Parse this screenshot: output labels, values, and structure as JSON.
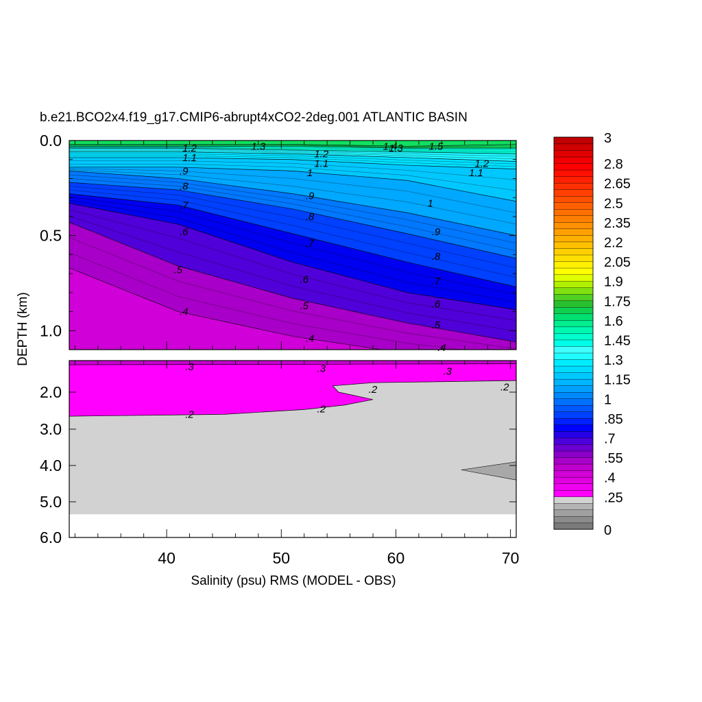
{
  "chart_data": {
    "type": "contour",
    "title": "b.e21.BCO2x4.f19_g17.CMIP6-abrupt4xCO2-2deg.001 ATLANTIC BASIN",
    "xlabel": "Salinity (psu) RMS (MODEL - OBS)",
    "ylabel": "DEPTH (km)",
    "xlim": [
      31.5,
      70.5
    ],
    "upper_panel": {
      "ylim": [
        0.0,
        1.1
      ],
      "yticks": [
        "0.0",
        "0.5",
        "1.0"
      ]
    },
    "lower_panel": {
      "ylim": [
        1.4,
        6.0
      ],
      "yticks": [
        "2.0",
        "3.0",
        "4.0",
        "5.0",
        "6.0"
      ]
    },
    "xticks": [
      "40",
      "50",
      "60",
      "70"
    ],
    "contour_lines": [
      {
        "level": 1.5,
        "label": "1.5",
        "depth": [
          0.02,
          0.02,
          0.02,
          0.03,
          0.02
        ]
      },
      {
        "level": 1.4,
        "label": "1.4",
        "depth": [
          0.03,
          0.03,
          0.03,
          0.04,
          0.04
        ]
      },
      {
        "level": 1.3,
        "label": "1.3",
        "depth": [
          0.04,
          0.04,
          0.05,
          0.06,
          0.07
        ]
      },
      {
        "level": 1.2,
        "label": "1.2",
        "depth": [
          0.06,
          0.06,
          0.07,
          0.09,
          0.11
        ]
      },
      {
        "level": 1.1,
        "label": "1.1",
        "depth": [
          0.09,
          0.09,
          0.1,
          0.13,
          0.15
        ]
      },
      {
        "level": 1.0,
        "label": "1",
        "depth": [
          0.14,
          0.14,
          0.16,
          0.21,
          0.32
        ]
      },
      {
        "level": 0.9,
        "label": ".9",
        "depth": [
          0.16,
          0.2,
          0.28,
          0.38,
          0.5
        ]
      },
      {
        "level": 0.8,
        "label": ".8",
        "depth": [
          0.22,
          0.26,
          0.36,
          0.49,
          0.62
        ]
      },
      {
        "level": 0.7,
        "label": ".7",
        "depth": [
          0.28,
          0.34,
          0.49,
          0.64,
          0.77
        ]
      },
      {
        "level": 0.6,
        "label": ".6",
        "depth": [
          0.33,
          0.44,
          0.64,
          0.8,
          0.89
        ]
      },
      {
        "level": 0.5,
        "label": ".5",
        "depth": [
          0.43,
          0.66,
          0.83,
          0.96,
          1.06
        ]
      },
      {
        "level": 0.4,
        "label": ".4",
        "depth": [
          0.67,
          0.9,
          1.03,
          1.12,
          1.17
        ]
      },
      {
        "level": 0.3,
        "label": ".3",
        "depth": [
          1.48,
          1.48,
          1.48,
          1.47,
          1.46
        ]
      },
      {
        "level": 0.2,
        "label": ".2",
        "depth": [
          2.65,
          2.55,
          2.35,
          1.9,
          1.8
        ]
      }
    ],
    "colorbar": {
      "labels": [
        "0",
        ".25",
        ".4",
        ".55",
        ".7",
        ".85",
        "1",
        "1.15",
        "1.3",
        "1.45",
        "1.6",
        "1.75",
        "1.9",
        "2.05",
        "2.2",
        "2.35",
        "2.5",
        "2.65",
        "2.8",
        "3"
      ],
      "colors": [
        "#7a7a7a",
        "#8c8c8c",
        "#a0a0a0",
        "#b4b4b4",
        "#d2d2d2",
        "#ff00ff",
        "#f000f0",
        "#e000e0",
        "#d000d6",
        "#c000cc",
        "#a800c8",
        "#8a00c8",
        "#6c00d0",
        "#4c00dc",
        "#2800e8",
        "#0000ff",
        "#0020ff",
        "#0040ff",
        "#0058ff",
        "#0070ff",
        "#0088ff",
        "#00a0ff",
        "#00b4ff",
        "#00c8ff",
        "#00dcff",
        "#00ecff",
        "#20fcff",
        "#40ffff",
        "#00ffe8",
        "#00ffcc",
        "#00f8b0",
        "#00ee90",
        "#00e070",
        "#10d050",
        "#28c030",
        "#50d020",
        "#80e010",
        "#b0f000",
        "#e0ff00",
        "#ffff00",
        "#fff000",
        "#ffe000",
        "#ffd000",
        "#ffc000",
        "#ffb000",
        "#ffa000",
        "#ff9000",
        "#ff8000",
        "#ff7000",
        "#ff6000",
        "#ff5000",
        "#ff4000",
        "#ff3000",
        "#ff2000",
        "#ff1000",
        "#ff0000",
        "#f00000",
        "#e00000",
        "#d00000",
        "#c00000"
      ]
    },
    "contour_label_positions": [
      {
        "label": "1.2",
        "x": 42,
        "depth": 0.04
      },
      {
        "label": "1.1",
        "x": 42,
        "depth": 0.09
      },
      {
        "label": ".9",
        "x": 41.5,
        "depth": 0.16
      },
      {
        "label": ".8",
        "x": 41.5,
        "depth": 0.24
      },
      {
        "label": ".7",
        "x": 41.5,
        "depth": 0.34
      },
      {
        "label": ".6",
        "x": 41.5,
        "depth": 0.48
      },
      {
        "label": ".5",
        "x": 41,
        "depth": 0.68
      },
      {
        "label": ".4",
        "x": 41.5,
        "depth": 0.9
      },
      {
        "label": "1.3",
        "x": 48,
        "depth": 0.03
      },
      {
        "label": "1.2",
        "x": 53.5,
        "depth": 0.07
      },
      {
        "label": "1.1",
        "x": 53.5,
        "depth": 0.12
      },
      {
        "label": "1",
        "x": 52.5,
        "depth": 0.17
      },
      {
        "label": ".9",
        "x": 52.5,
        "depth": 0.29
      },
      {
        "label": ".8",
        "x": 52.5,
        "depth": 0.4
      },
      {
        "label": ".7",
        "x": 52.5,
        "depth": 0.54
      },
      {
        "label": ".6",
        "x": 52,
        "depth": 0.73
      },
      {
        "label": ".5",
        "x": 52,
        "depth": 0.87
      },
      {
        "label": ".4",
        "x": 52.5,
        "depth": 1.04
      },
      {
        "label": "1.4",
        "x": 59.5,
        "depth": 0.03
      },
      {
        "label": "1.3",
        "x": 60,
        "depth": 0.04
      },
      {
        "label": "1.5",
        "x": 63.5,
        "depth": 0.03
      },
      {
        "label": "1.2",
        "x": 67.5,
        "depth": 0.12
      },
      {
        "label": "1.1",
        "x": 67,
        "depth": 0.17
      },
      {
        "label": "1",
        "x": 63,
        "depth": 0.33
      },
      {
        "label": ".9",
        "x": 63.5,
        "depth": 0.48
      },
      {
        "label": ".8",
        "x": 63.5,
        "depth": 0.61
      },
      {
        "label": ".7",
        "x": 63.5,
        "depth": 0.74
      },
      {
        "label": ".6",
        "x": 63.5,
        "depth": 0.86
      },
      {
        "label": ".5",
        "x": 63.5,
        "depth": 0.97
      },
      {
        "label": ".4",
        "x": 64,
        "depth": 1.09
      },
      {
        "label": ".3",
        "x": 42,
        "depth": 1.52
      },
      {
        "label": ".3",
        "x": 53.5,
        "depth": 1.55
      },
      {
        "label": ".3",
        "x": 64.5,
        "depth": 1.6
      },
      {
        "label": ".2",
        "x": 58,
        "depth": 1.95
      },
      {
        "label": ".2",
        "x": 69.5,
        "depth": 1.9
      },
      {
        "label": ".2",
        "x": 42,
        "depth": 2.6
      },
      {
        "label": ".2",
        "x": 53.5,
        "depth": 2.45
      }
    ]
  }
}
